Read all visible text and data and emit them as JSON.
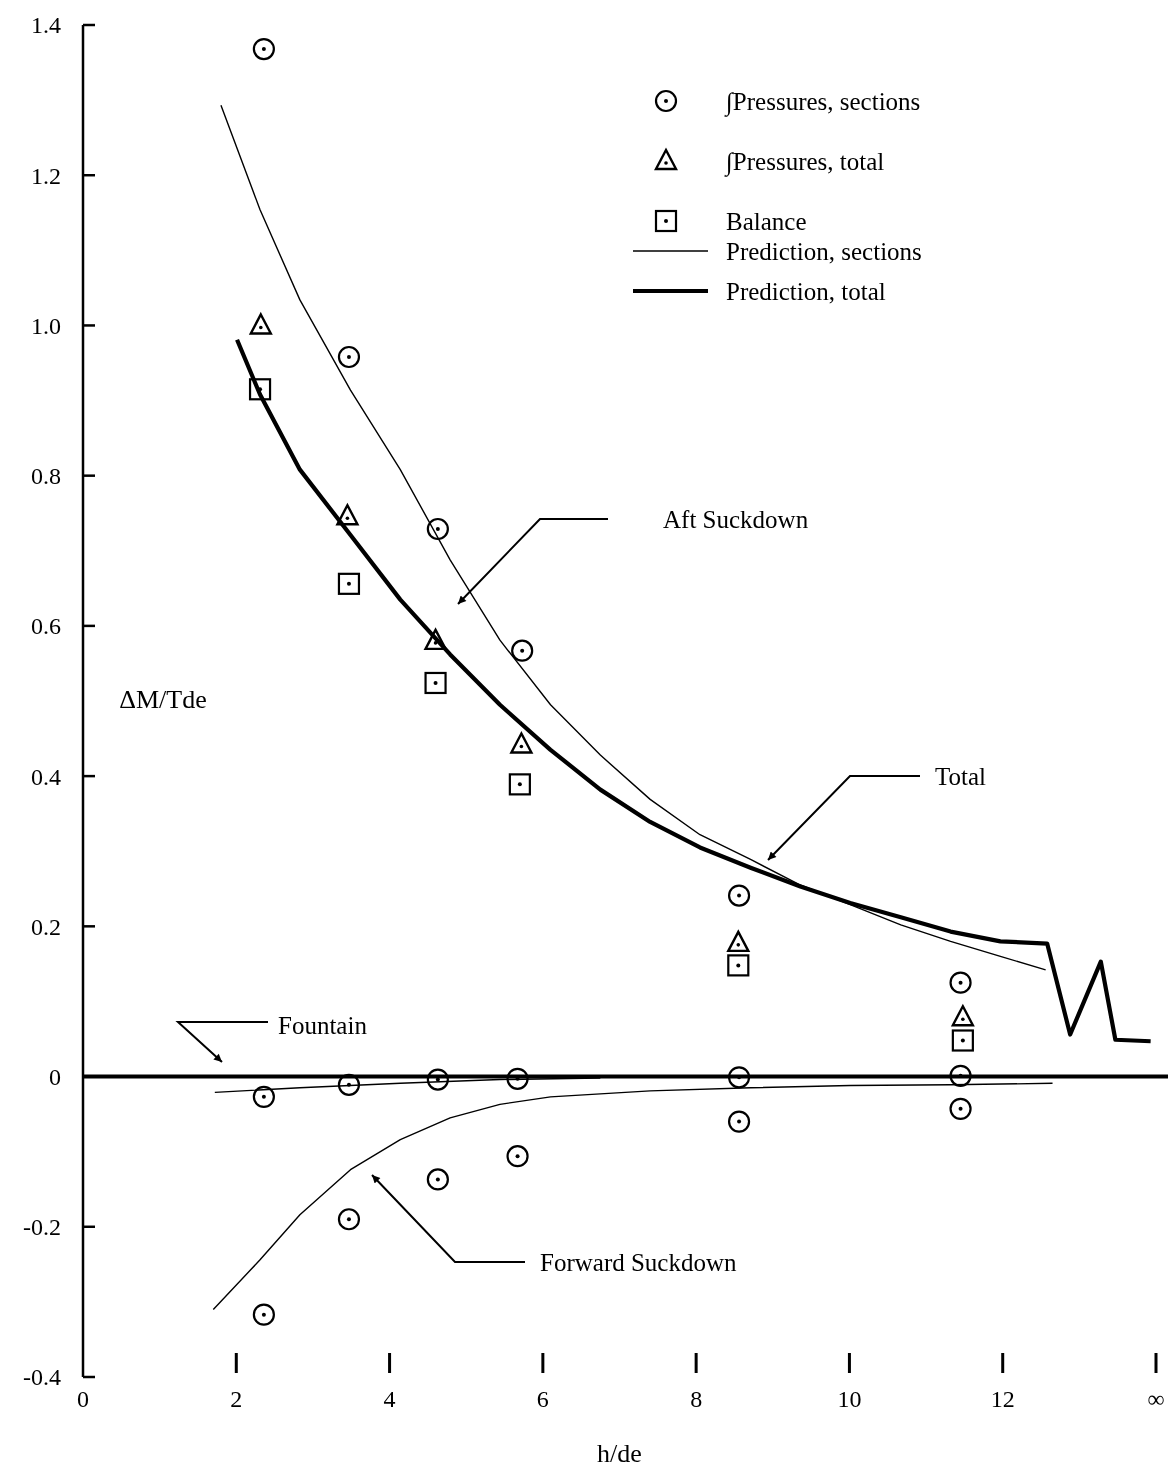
{
  "chart_data": {
    "type": "scatter",
    "xlabel": "h/de",
    "ylabel": "ΔM/Tde",
    "xlim": [
      0,
      14
    ],
    "ylim": [
      -0.4,
      1.4
    ],
    "xticks": [
      0,
      2,
      4,
      6,
      8,
      10,
      12,
      {
        "value": 14,
        "label": "∞"
      }
    ],
    "yticks": [
      -0.4,
      -0.2,
      0,
      0.2,
      0.4,
      0.6,
      0.8,
      {
        "value": 1,
        "label": "1.0"
      },
      1.2,
      1.4
    ],
    "grid": false,
    "legend": "top right",
    "ref_lines": [
      {
        "axis": "y",
        "value": 0,
        "color": "#000000"
      }
    ],
    "annotations": [
      "Aft Suckdown",
      "Total",
      "Fountain",
      "Forward Suckdown"
    ],
    "series": [
      {
        "name": "∫Pressures, sections",
        "marker": "circle",
        "color": "#000000",
        "x": [
          2.36,
          3.47,
          4.63,
          5.73,
          8.56,
          11.45,
          2.36,
          3.47,
          4.63,
          5.67,
          8.56,
          11.45,
          2.36,
          3.47,
          4.63,
          5.67,
          8.56,
          11.45
        ],
        "values": [
          1.368,
          0.958,
          0.729,
          0.567,
          0.241,
          0.125,
          -0.027,
          -0.011,
          -0.004,
          -0.003,
          -0.001,
          0.001,
          -0.317,
          -0.19,
          -0.137,
          -0.106,
          -0.06,
          -0.043
        ]
      },
      {
        "name": "∫Pressures, total",
        "marker": "triangle",
        "color": "#000000",
        "x": [
          2.32,
          3.45,
          4.6,
          5.72,
          8.55,
          11.48
        ],
        "values": [
          1.0,
          0.746,
          0.58,
          0.442,
          0.178,
          0.079
        ]
      },
      {
        "name": "Balance",
        "marker": "square",
        "color": "#000000",
        "x": [
          2.31,
          3.47,
          4.6,
          5.7,
          8.55,
          11.48
        ],
        "values": [
          0.915,
          0.656,
          0.524,
          0.389,
          0.148,
          0.048
        ]
      },
      {
        "name": "Prediction, sections",
        "type": "line",
        "line_style": "solid",
        "color": "#000000",
        "x": [
          1.8,
          2.31,
          2.83,
          3.49,
          4.14,
          4.79,
          5.44,
          6.1,
          6.75,
          7.4,
          8.05,
          8.71,
          9.36,
          10.01,
          10.67,
          11.32,
          11.97,
          12.56
        ],
        "values": [
          1.293,
          1.154,
          1.034,
          0.914,
          0.808,
          0.688,
          0.581,
          0.495,
          0.428,
          0.369,
          0.322,
          0.289,
          0.255,
          0.229,
          0.202,
          0.18,
          0.16,
          0.142
        ]
      },
      {
        "type": "line",
        "line_style": "solid",
        "color": "#000000",
        "x": [
          1.72,
          2.83,
          4.14,
          5.44,
          6.75
        ],
        "values": [
          -0.021,
          -0.015,
          -0.009,
          -0.004,
          -0.002
        ]
      },
      {
        "type": "line",
        "line_style": "solid",
        "color": "#000000",
        "x": [
          1.7,
          2.31,
          2.83,
          3.49,
          4.14,
          4.79,
          5.44,
          6.1,
          7.4,
          8.71,
          10.01,
          11.32,
          12.65
        ],
        "values": [
          -0.31,
          -0.244,
          -0.184,
          -0.124,
          -0.084,
          -0.055,
          -0.037,
          -0.027,
          -0.019,
          -0.015,
          -0.012,
          -0.011,
          -0.009
        ]
      },
      {
        "name": "Prediction, total",
        "type": "line",
        "line_style": "solid",
        "color": "#000000",
        "x": [
          2.01,
          2.31,
          2.83,
          3.49,
          4.14,
          4.79,
          5.44,
          6.1,
          6.75,
          7.4,
          8.05,
          8.71,
          9.36,
          10.01,
          10.67,
          11.32,
          11.97,
          12.58,
          12.88,
          13.28,
          13.47,
          13.93
        ],
        "values": [
          0.981,
          0.908,
          0.808,
          0.721,
          0.635,
          0.562,
          0.495,
          0.435,
          0.382,
          0.339,
          0.305,
          0.278,
          0.253,
          0.231,
          0.212,
          0.193,
          0.18,
          0.177,
          0.056,
          0.153,
          0.049,
          0.047
        ]
      }
    ]
  }
}
